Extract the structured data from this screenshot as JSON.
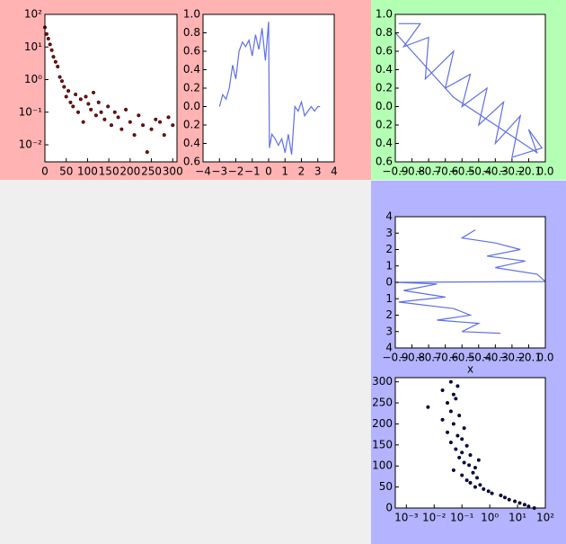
{
  "chart_data": [
    {
      "type": "scatter",
      "ylog": true,
      "color": "#8b0000",
      "x": [
        0,
        4,
        8,
        12,
        16,
        20,
        25,
        30,
        35,
        40,
        45,
        50,
        55,
        60,
        66,
        72,
        78,
        84,
        90,
        96,
        102,
        108,
        114,
        120,
        126,
        132,
        140,
        148,
        156,
        164,
        172,
        180,
        190,
        200,
        210,
        220,
        230,
        240,
        250,
        260,
        270,
        280,
        290,
        300
      ],
      "values": [
        40,
        25,
        18,
        12,
        8,
        5,
        3.5,
        2.5,
        1.2,
        0.9,
        0.6,
        0.3,
        0.45,
        0.2,
        0.15,
        0.35,
        0.1,
        0.25,
        0.05,
        0.3,
        0.18,
        0.12,
        0.4,
        0.08,
        0.2,
        0.1,
        0.06,
        0.15,
        0.04,
        0.1,
        0.07,
        0.03,
        0.12,
        0.05,
        0.02,
        0.08,
        0.04,
        0.006,
        0.03,
        0.06,
        0.05,
        0.02,
        0.07,
        0.04
      ],
      "xlim": [
        0,
        310
      ],
      "xticks": [
        0,
        50,
        100,
        150,
        200,
        250,
        300
      ],
      "ylim": [
        0.003,
        100
      ],
      "yticks": [
        {
          "value": 0.01,
          "label": "10⁻²"
        },
        {
          "value": 0.1,
          "label": "10⁻¹"
        },
        {
          "value": 1,
          "label": "10⁰"
        },
        {
          "value": 10,
          "label": "10¹"
        },
        {
          "value": 100,
          "label": "10²"
        }
      ]
    },
    {
      "type": "line",
      "color": "#5f6fe6",
      "x": [
        -3,
        -2.8,
        -2.6,
        -2.4,
        -2.2,
        -2,
        -1.8,
        -1.6,
        -1.4,
        -1.2,
        -1,
        -0.8,
        -0.6,
        -0.4,
        -0.2,
        0,
        0.05,
        0.2,
        0.4,
        0.6,
        0.8,
        1,
        1.2,
        1.4,
        1.6,
        1.8,
        2,
        2.2,
        2.4,
        2.6,
        2.8,
        3,
        3.14
      ],
      "values": [
        0,
        0.13,
        0.08,
        0.2,
        0.45,
        0.3,
        0.6,
        0.7,
        0.65,
        0.72,
        0.55,
        0.78,
        0.62,
        0.85,
        0.5,
        0.92,
        -0.45,
        -0.3,
        -0.35,
        -0.42,
        -0.35,
        -0.5,
        -0.3,
        -0.52,
        0.0,
        -0.05,
        0.05,
        -0.1,
        -0.05,
        0.0,
        -0.05,
        0,
        0
      ],
      "xlim": [
        -4,
        4
      ],
      "xticks": [
        {
          "value": -4,
          "label": "−4"
        },
        {
          "value": -3,
          "label": "−3"
        },
        {
          "value": -2,
          "label": "−2"
        },
        {
          "value": -1,
          "label": "−1"
        },
        0,
        1,
        2,
        3,
        4
      ],
      "ylim": [
        -0.6,
        1.0
      ],
      "yticks": [
        {
          "value": -0.6,
          "label": "0.6"
        },
        {
          "value": -0.4,
          "label": "0.4"
        },
        {
          "value": -0.2,
          "label": "0.2"
        },
        {
          "value": 0,
          "label": "0.0"
        },
        0.2,
        0.4,
        0.6,
        0.8,
        {
          "value": 1.0,
          "label": "1.0"
        }
      ]
    },
    {
      "type": "line",
      "color": "#5f6fe6",
      "x": [
        -0.88,
        -0.75,
        -0.85,
        -0.7,
        -0.72,
        -0.55,
        -0.6,
        -0.45,
        -0.5,
        -0.35,
        -0.4,
        -0.25,
        -0.3,
        -0.15,
        -0.2,
        -0.02,
        -0.1,
        -0.05,
        -0.3,
        -0.55,
        -0.9
      ],
      "values": [
        0.9,
        0.9,
        0.65,
        0.75,
        0.3,
        0.6,
        0.2,
        0.35,
        0.0,
        0.2,
        -0.2,
        0.05,
        -0.4,
        -0.1,
        -0.55,
        -0.45,
        -0.25,
        -0.5,
        -0.2,
        0.1,
        0.8
      ],
      "xlim": [
        -0.9,
        0
      ],
      "xticks": [
        {
          "value": -0.9,
          "label": "−0.9"
        },
        {
          "value": -0.8,
          "label": "−0.8"
        },
        {
          "value": -0.7,
          "label": "−0.7"
        },
        {
          "value": -0.6,
          "label": "−0.6"
        },
        {
          "value": -0.5,
          "label": "−0.5"
        },
        {
          "value": -0.4,
          "label": "−0.4"
        },
        {
          "value": -0.3,
          "label": "−0.3"
        },
        {
          "value": -0.2,
          "label": "−0.2"
        },
        {
          "value": -0.1,
          "label": "−0.1"
        },
        {
          "value": 0,
          "label": "0.0"
        }
      ],
      "ylim": [
        -0.6,
        1.0
      ],
      "yticks": [
        {
          "value": -0.6,
          "label": "0.6"
        },
        {
          "value": -0.4,
          "label": "0.4"
        },
        {
          "value": -0.2,
          "label": "0.2"
        },
        {
          "value": 0,
          "label": "0.0"
        },
        0.2,
        0.4,
        0.6,
        0.8,
        {
          "value": 1.0,
          "label": "1.0"
        }
      ]
    },
    {
      "type": "line",
      "color": "#5f6fe6",
      "xlabel": "x",
      "x": [
        -0.42,
        -0.5,
        -0.3,
        -0.15,
        -0.35,
        -0.12,
        -0.3,
        -0.05,
        0.0,
        -0.9,
        -0.65,
        -0.85,
        -0.6,
        -0.88,
        -0.55,
        -0.45,
        -0.65,
        -0.4,
        -0.5,
        -0.27
      ],
      "values": [
        3.2,
        2.7,
        2.4,
        2.0,
        1.6,
        1.3,
        0.9,
        0.5,
        0.05,
        0.0,
        -0.1,
        -0.5,
        -0.9,
        -1.2,
        -1.6,
        -2.0,
        -2.3,
        -2.5,
        -3.0,
        -3.1
      ],
      "xlim": [
        -0.9,
        0
      ],
      "xticks": [
        {
          "value": -0.9,
          "label": "−0.9"
        },
        {
          "value": -0.8,
          "label": "−0.8"
        },
        {
          "value": -0.7,
          "label": "−0.7"
        },
        {
          "value": -0.6,
          "label": "−0.6"
        },
        {
          "value": -0.5,
          "label": "−0.5"
        },
        {
          "value": -0.4,
          "label": "−0.4"
        },
        {
          "value": -0.3,
          "label": "−0.3"
        },
        {
          "value": -0.2,
          "label": "−0.2"
        },
        {
          "value": -0.1,
          "label": "−0.1"
        },
        {
          "value": 0,
          "label": "0.0"
        }
      ],
      "ylim": [
        -4,
        4
      ],
      "yticks": [
        {
          "value": -4,
          "label": "4"
        },
        {
          "value": -3,
          "label": "3"
        },
        {
          "value": -2,
          "label": "2"
        },
        {
          "value": -1,
          "label": "1"
        },
        0,
        1,
        2,
        3,
        4
      ]
    },
    {
      "type": "scatter",
      "xlog": true,
      "color": "#000060",
      "x": [
        40,
        25,
        18,
        12,
        8,
        5,
        3.5,
        2.5,
        1.2,
        0.9,
        0.6,
        0.3,
        0.45,
        0.2,
        0.15,
        0.35,
        0.1,
        0.25,
        0.05,
        0.3,
        0.18,
        0.12,
        0.4,
        0.08,
        0.2,
        0.1,
        0.06,
        0.15,
        0.04,
        0.1,
        0.07,
        0.03,
        0.12,
        0.05,
        0.02,
        0.08,
        0.04,
        0.006,
        0.03,
        0.06,
        0.05,
        0.02,
        0.07,
        0.04
      ],
      "values": [
        0,
        4,
        8,
        12,
        16,
        20,
        25,
        30,
        35,
        40,
        45,
        50,
        55,
        60,
        66,
        72,
        78,
        84,
        90,
        96,
        102,
        108,
        114,
        120,
        126,
        132,
        140,
        148,
        156,
        164,
        172,
        180,
        190,
        200,
        210,
        220,
        230,
        240,
        250,
        260,
        270,
        280,
        290,
        300
      ],
      "xlim": [
        0.0004,
        100
      ],
      "xticks": [
        {
          "value": 0.001,
          "label": "10⁻³"
        },
        {
          "value": 0.01,
          "label": "10⁻²"
        },
        {
          "value": 0.1,
          "label": "10⁻¹"
        },
        {
          "value": 1,
          "label": "10⁰"
        },
        {
          "value": 10,
          "label": "10¹"
        },
        {
          "value": 100,
          "label": "10²"
        }
      ],
      "ylim": [
        0,
        310
      ],
      "yticks": [
        0,
        50,
        100,
        150,
        200,
        250,
        300
      ]
    }
  ]
}
